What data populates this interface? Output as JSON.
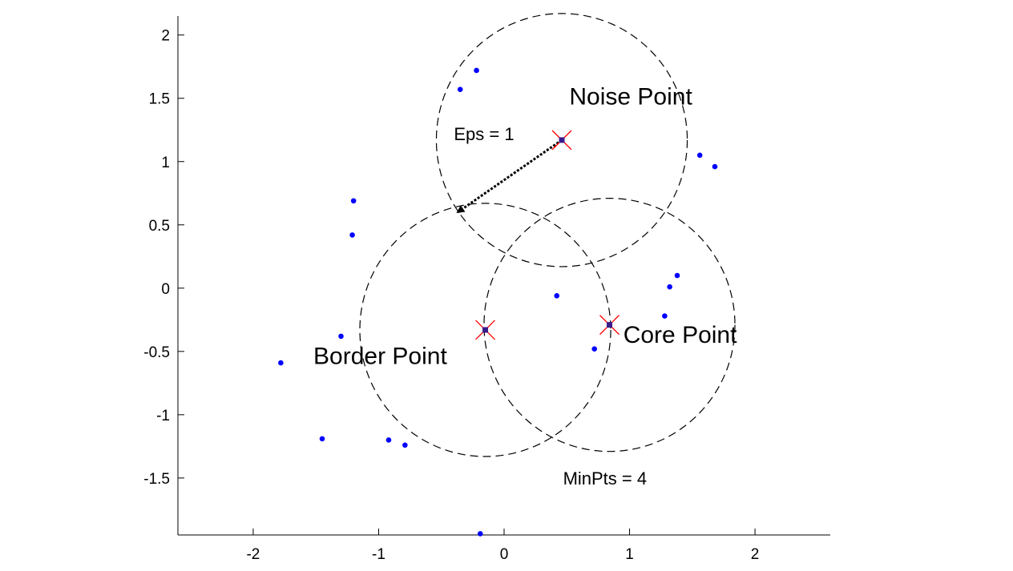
{
  "chart_data": {
    "type": "scatter",
    "xlim": [
      -2.6,
      2.6
    ],
    "ylim": [
      -1.95,
      2.15
    ],
    "xticks": [
      -2,
      -1,
      0,
      1,
      2
    ],
    "yticks": [
      2,
      1.5,
      1,
      0.5,
      0,
      -0.5,
      -1,
      -1.5
    ],
    "xtick_labels": [
      "-2",
      "-1",
      "0",
      "1",
      "2"
    ],
    "ytick_labels": [
      "2",
      "1.5",
      "1",
      "0.5",
      "0",
      "-0.5",
      "-1",
      "-1.5"
    ],
    "grid": false,
    "points": [
      {
        "x": -0.35,
        "y": 1.57
      },
      {
        "x": -0.22,
        "y": 1.72
      },
      {
        "x": 1.56,
        "y": 1.05
      },
      {
        "x": 1.68,
        "y": 0.96
      },
      {
        "x": -1.2,
        "y": 0.69
      },
      {
        "x": -1.21,
        "y": 0.42
      },
      {
        "x": 0.42,
        "y": -0.06
      },
      {
        "x": 1.38,
        "y": 0.1
      },
      {
        "x": 1.32,
        "y": 0.01
      },
      {
        "x": 1.28,
        "y": -0.22
      },
      {
        "x": -0.15,
        "y": -0.33
      },
      {
        "x": 0.84,
        "y": -0.29
      },
      {
        "x": 0.72,
        "y": -0.48
      },
      {
        "x": 0.46,
        "y": 1.17
      },
      {
        "x": -1.3,
        "y": -0.38
      },
      {
        "x": -1.78,
        "y": -0.59
      },
      {
        "x": -1.45,
        "y": -1.19
      },
      {
        "x": -0.92,
        "y": -1.2
      },
      {
        "x": -0.79,
        "y": -1.24
      },
      {
        "x": -0.19,
        "y": -1.94
      }
    ],
    "highlighted_points": [
      {
        "x": 0.46,
        "y": 1.17,
        "label": "Noise Point"
      },
      {
        "x": -0.15,
        "y": -0.33,
        "label": "Border Point"
      },
      {
        "x": 0.84,
        "y": -0.29,
        "label": "Core Point"
      }
    ],
    "circles": [
      {
        "cx": 0.46,
        "cy": 1.17,
        "r": 1.0
      },
      {
        "cx": -0.15,
        "cy": -0.33,
        "r": 1.0
      },
      {
        "cx": 0.84,
        "cy": -0.29,
        "r": 1.0
      }
    ],
    "arrow": {
      "from": [
        0.46,
        1.17
      ],
      "to": [
        -0.37,
        0.6
      ]
    },
    "annotations": [
      {
        "text": "Noise Point",
        "x": 0.52,
        "y": 1.45
      },
      {
        "text": "Border Point",
        "x": -1.52,
        "y": -0.6
      },
      {
        "text": "Core Point",
        "x": 0.95,
        "y": -0.43
      },
      {
        "text": "Eps = 1",
        "x": -0.4,
        "y": 1.17
      },
      {
        "text": "MinPts = 4",
        "x": 0.47,
        "y": -1.55
      }
    ],
    "colors": {
      "point": "#0000ff",
      "highlight_cross": "#ff0000",
      "highlight_center": "#3a1a8a",
      "circle": "#000000",
      "axis": "#000000"
    }
  },
  "labels": {
    "noise": "Noise Point",
    "border": "Border Point",
    "core": "Core Point",
    "eps": "Eps = 1",
    "minpts": "MinPts = 4"
  }
}
